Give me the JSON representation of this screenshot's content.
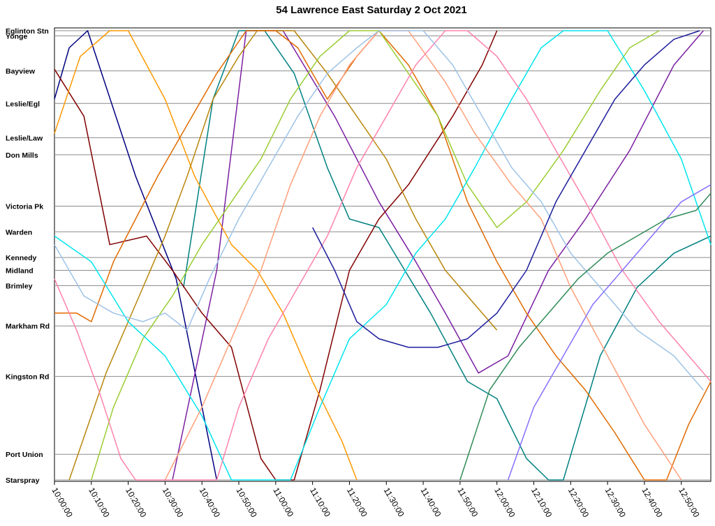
{
  "chart_data": {
    "type": "line",
    "title": "54 Lawrence East Saturday 2 Oct 2021",
    "xlabel": "",
    "ylabel": "",
    "x_range": [
      "10:00:00",
      "12:58:00"
    ],
    "x_tick_labels": [
      "10:00:00",
      "10:10:00",
      "10:20:00",
      "10:30:00",
      "10:40:00",
      "10:50:00",
      "11:00:00",
      "11:10:00",
      "11:20:00",
      "11:30:00",
      "11:40:00",
      "11:50:00",
      "12:00:00",
      "12:10:00",
      "12:20:00",
      "12:30:00",
      "12:40:00",
      "12:50:00"
    ],
    "stops": [
      {
        "name": "Eglinton Stn",
        "pos": 0
      },
      {
        "name": "Yonge",
        "pos": 0.6
      },
      {
        "name": "Bayview",
        "pos": 4.7
      },
      {
        "name": "Leslie/Egl",
        "pos": 8.5
      },
      {
        "name": "Leslie/Law",
        "pos": 12.5
      },
      {
        "name": "Don Mills",
        "pos": 14.5
      },
      {
        "name": "Victoria Pk",
        "pos": 20.5
      },
      {
        "name": "Warden",
        "pos": 23.5
      },
      {
        "name": "Kennedy",
        "pos": 26.5
      },
      {
        "name": "Midland",
        "pos": 28
      },
      {
        "name": "Brimley",
        "pos": 29.8
      },
      {
        "name": "Markham Rd",
        "pos": 34.5
      },
      {
        "name": "Kingston Rd",
        "pos": 40.4
      },
      {
        "name": "Port Union",
        "pos": 49.5
      },
      {
        "name": "Starspray",
        "pos": 52.5
      }
    ],
    "grid": true,
    "legend": "none",
    "series": [
      {
        "color": "#000080",
        "points": [
          [
            "10:00",
            8
          ],
          [
            "10:04",
            2
          ],
          [
            "10:09",
            0
          ],
          [
            "10:22",
            17
          ],
          [
            "10:33",
            29
          ],
          [
            "10:44",
            52.5
          ]
        ]
      },
      {
        "color": "#7b1fa2",
        "points": [
          [
            "10:32",
            52.5
          ],
          [
            "10:44",
            28
          ],
          [
            "10:52",
            0
          ],
          [
            "11:02",
            0
          ],
          [
            "11:16",
            10
          ],
          [
            "11:28",
            20
          ],
          [
            "11:38",
            27
          ],
          [
            "11:46",
            33
          ],
          [
            "11:55",
            40
          ],
          [
            "12:03",
            38
          ],
          [
            "12:14",
            28
          ],
          [
            "12:24",
            22
          ],
          [
            "12:36",
            14
          ],
          [
            "12:48",
            4
          ],
          [
            "12:56",
            0
          ]
        ]
      },
      {
        "color": "#008080",
        "points": [
          [
            "10:35",
            30
          ],
          [
            "10:43",
            8
          ],
          [
            "10:50",
            0
          ],
          [
            "10:57",
            0
          ],
          [
            "11:05",
            5
          ],
          [
            "11:14",
            16
          ],
          [
            "11:20",
            22
          ],
          [
            "11:28",
            23
          ],
          [
            "11:35",
            28
          ],
          [
            "11:42",
            33
          ],
          [
            "11:52",
            41
          ],
          [
            "12:00",
            43
          ],
          [
            "12:08",
            50
          ],
          [
            "12:14",
            52.5
          ],
          [
            "12:18",
            52.5
          ],
          [
            "12:28",
            38
          ],
          [
            "12:38",
            30
          ],
          [
            "12:48",
            26
          ],
          [
            "12:58",
            24
          ]
        ]
      },
      {
        "color": "#800000",
        "points": [
          [
            "10:00",
            4.5
          ],
          [
            "10:08",
            10
          ],
          [
            "10:15",
            25
          ],
          [
            "10:25",
            24
          ],
          [
            "10:32",
            28
          ],
          [
            "10:40",
            33
          ],
          [
            "10:48",
            37
          ],
          [
            "10:56",
            50
          ],
          [
            "11:00",
            52.5
          ],
          [
            "11:05",
            52.5
          ],
          [
            "11:12",
            42
          ],
          [
            "11:20",
            28
          ],
          [
            "11:28",
            22
          ],
          [
            "11:36",
            18
          ],
          [
            "11:48",
            10
          ],
          [
            "11:56",
            4
          ],
          [
            "12:00",
            0
          ]
        ]
      },
      {
        "color": "#ff9900",
        "points": [
          [
            "10:00",
            12
          ],
          [
            "10:07",
            3
          ],
          [
            "10:15",
            0
          ],
          [
            "10:20",
            0
          ],
          [
            "10:30",
            8
          ],
          [
            "10:38",
            17
          ],
          [
            "10:48",
            25
          ],
          [
            "10:55",
            28
          ],
          [
            "11:02",
            33
          ],
          [
            "11:10",
            41
          ],
          [
            "11:18",
            48
          ],
          [
            "11:22",
            52.5
          ]
        ]
      },
      {
        "color": "#b8860b",
        "points": [
          [
            "10:04",
            52.5
          ],
          [
            "10:14",
            40
          ],
          [
            "10:24",
            30
          ],
          [
            "10:30",
            24
          ],
          [
            "10:36",
            17
          ],
          [
            "10:43",
            8
          ],
          [
            "10:50",
            3
          ],
          [
            "10:55",
            0
          ],
          [
            "11:05",
            0
          ],
          [
            "11:14",
            5
          ],
          [
            "11:22",
            10
          ],
          [
            "11:30",
            15
          ],
          [
            "11:38",
            22
          ],
          [
            "11:46",
            28
          ],
          [
            "11:54",
            32
          ],
          [
            "12:00",
            35
          ]
        ]
      },
      {
        "color": "#e06a00",
        "points": [
          [
            "10:00",
            33
          ],
          [
            "10:06",
            33
          ],
          [
            "10:10",
            34
          ],
          [
            "10:16",
            27
          ],
          [
            "10:22",
            22
          ],
          [
            "10:28",
            17
          ],
          [
            "10:36",
            11
          ],
          [
            "10:44",
            5
          ],
          [
            "10:52",
            0
          ],
          [
            "11:00",
            0
          ],
          [
            "11:06",
            2
          ],
          [
            "11:14",
            8
          ],
          [
            "11:22",
            3
          ],
          [
            "11:28",
            0
          ],
          [
            "11:36",
            4
          ],
          [
            "11:44",
            10
          ],
          [
            "11:52",
            20
          ],
          [
            "12:00",
            27
          ],
          [
            "12:08",
            33
          ],
          [
            "12:16",
            38
          ],
          [
            "12:24",
            42
          ],
          [
            "12:32",
            47
          ],
          [
            "12:40",
            52.5
          ],
          [
            "12:46",
            52.5
          ],
          [
            "12:52",
            46
          ],
          [
            "12:58",
            41
          ]
        ]
      },
      {
        "color": "#9acd32",
        "points": [
          [
            "10:10",
            52.5
          ],
          [
            "10:16",
            44
          ],
          [
            "10:24",
            36
          ],
          [
            "10:32",
            31
          ],
          [
            "10:40",
            25
          ],
          [
            "10:48",
            20
          ],
          [
            "10:56",
            15
          ],
          [
            "11:04",
            8
          ],
          [
            "11:12",
            3
          ],
          [
            "11:20",
            0
          ],
          [
            "11:28",
            0
          ],
          [
            "11:36",
            5
          ],
          [
            "11:44",
            10
          ],
          [
            "11:52",
            18
          ],
          [
            "12:00",
            23
          ],
          [
            "12:08",
            20
          ],
          [
            "12:18",
            14
          ],
          [
            "12:28",
            7
          ],
          [
            "12:36",
            2
          ],
          [
            "12:44",
            0
          ]
        ]
      },
      {
        "color": "#00e5ee",
        "points": [
          [
            "10:00",
            24
          ],
          [
            "10:10",
            27
          ],
          [
            "10:20",
            34
          ],
          [
            "10:30",
            38
          ],
          [
            "10:40",
            45
          ],
          [
            "10:48",
            52.5
          ],
          [
            "11:04",
            52.5
          ],
          [
            "11:12",
            44
          ],
          [
            "11:20",
            36
          ],
          [
            "11:30",
            32
          ],
          [
            "11:38",
            26
          ],
          [
            "11:46",
            22
          ],
          [
            "11:54",
            16
          ],
          [
            "12:04",
            8
          ],
          [
            "12:12",
            2
          ],
          [
            "12:18",
            0
          ],
          [
            "12:30",
            0
          ],
          [
            "12:40",
            7
          ],
          [
            "12:50",
            15
          ],
          [
            "12:58",
            25
          ]
        ]
      },
      {
        "color": "#ffa07a",
        "points": [
          [
            "10:30",
            52.5
          ],
          [
            "10:40",
            44
          ],
          [
            "10:48",
            36
          ],
          [
            "10:56",
            28
          ],
          [
            "11:04",
            18
          ],
          [
            "11:12",
            10
          ],
          [
            "11:20",
            4
          ],
          [
            "11:28",
            0
          ],
          [
            "11:36",
            0
          ],
          [
            "11:46",
            6
          ],
          [
            "11:54",
            12
          ],
          [
            "12:04",
            18
          ],
          [
            "12:12",
            22
          ],
          [
            "12:20",
            30
          ],
          [
            "12:30",
            38
          ],
          [
            "12:40",
            46
          ],
          [
            "12:50",
            52.5
          ]
        ]
      },
      {
        "color": "#ff82ab",
        "points": [
          [
            "10:00",
            29
          ],
          [
            "10:06",
            35
          ],
          [
            "10:12",
            42
          ],
          [
            "10:18",
            50
          ],
          [
            "10:22",
            52.5
          ],
          [
            "10:44",
            52.5
          ],
          [
            "10:50",
            44
          ],
          [
            "10:58",
            36
          ],
          [
            "11:06",
            30
          ],
          [
            "11:14",
            24
          ],
          [
            "11:22",
            16
          ],
          [
            "11:30",
            10
          ],
          [
            "11:38",
            4
          ],
          [
            "11:46",
            0
          ],
          [
            "11:52",
            0
          ],
          [
            "12:00",
            3
          ],
          [
            "12:08",
            8
          ],
          [
            "12:16",
            14
          ],
          [
            "12:24",
            20
          ],
          [
            "12:34",
            28
          ],
          [
            "12:44",
            34
          ],
          [
            "12:52",
            38
          ],
          [
            "12:58",
            41
          ]
        ]
      },
      {
        "color": "#9ec3e6",
        "points": [
          [
            "10:00",
            25
          ],
          [
            "10:08",
            31
          ],
          [
            "10:16",
            33
          ],
          [
            "10:24",
            34
          ],
          [
            "10:30",
            33
          ],
          [
            "10:36",
            35
          ],
          [
            "10:42",
            29
          ],
          [
            "10:50",
            22
          ],
          [
            "10:58",
            16
          ],
          [
            "11:06",
            10
          ],
          [
            "11:14",
            5
          ],
          [
            "11:22",
            2
          ],
          [
            "11:28",
            0
          ],
          [
            "11:40",
            0
          ],
          [
            "11:48",
            4
          ],
          [
            "11:56",
            10
          ],
          [
            "12:04",
            16
          ],
          [
            "12:12",
            20
          ],
          [
            "12:20",
            26
          ],
          [
            "12:28",
            30
          ],
          [
            "12:38",
            35
          ],
          [
            "12:48",
            38
          ],
          [
            "12:56",
            42
          ]
        ]
      },
      {
        "color": "#8470ff",
        "points": [
          [
            "12:03",
            52.5
          ],
          [
            "12:10",
            44
          ],
          [
            "12:18",
            38
          ],
          [
            "12:26",
            32
          ],
          [
            "12:34",
            28
          ],
          [
            "12:42",
            24
          ],
          [
            "12:50",
            20
          ],
          [
            "12:58",
            18
          ]
        ]
      },
      {
        "color": "#1c1c9c",
        "points": [
          [
            "11:10",
            23
          ],
          [
            "11:16",
            28
          ],
          [
            "11:22",
            34
          ],
          [
            "11:28",
            36
          ],
          [
            "11:36",
            37
          ],
          [
            "11:44",
            37
          ],
          [
            "11:52",
            36
          ],
          [
            "12:00",
            33
          ],
          [
            "12:08",
            28
          ],
          [
            "12:16",
            20
          ],
          [
            "12:24",
            14
          ],
          [
            "12:32",
            8
          ],
          [
            "12:40",
            4
          ],
          [
            "12:48",
            1
          ],
          [
            "12:55",
            0
          ]
        ]
      },
      {
        "color": "#2e8b57",
        "points": [
          [
            "11:50",
            52.5
          ],
          [
            "11:58",
            42
          ],
          [
            "12:06",
            37
          ],
          [
            "12:14",
            33
          ],
          [
            "12:22",
            29
          ],
          [
            "12:30",
            26
          ],
          [
            "12:38",
            24
          ],
          [
            "12:46",
            22
          ],
          [
            "12:54",
            21
          ],
          [
            "12:58",
            19
          ]
        ]
      }
    ]
  }
}
